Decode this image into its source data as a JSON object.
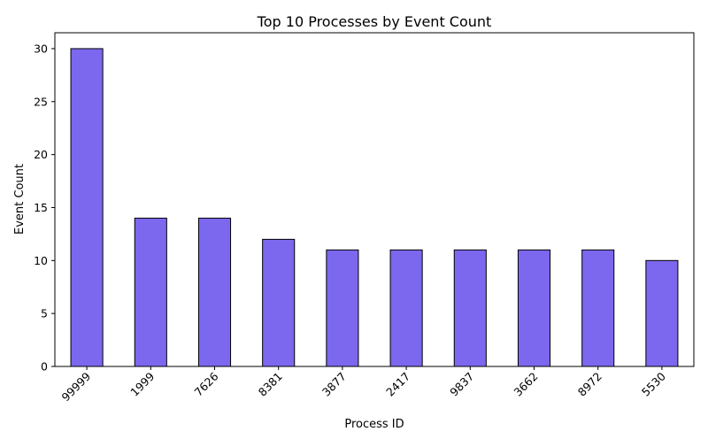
{
  "colors": {
    "bar_fill": "#7b68ee",
    "bar_edge": "#000000",
    "axis": "#000000",
    "background": "#ffffff"
  },
  "chart_data": {
    "type": "bar",
    "title": "Top 10 Processes by Event Count",
    "xlabel": "Process ID",
    "ylabel": "Event Count",
    "categories": [
      "99999",
      "1999",
      "7626",
      "8381",
      "3877",
      "2417",
      "9837",
      "3662",
      "8972",
      "5530"
    ],
    "values": [
      30,
      14,
      14,
      12,
      11,
      11,
      11,
      11,
      11,
      10
    ],
    "ylim": [
      0,
      31.5
    ],
    "yticks": [
      0,
      5,
      10,
      15,
      20,
      25,
      30
    ],
    "x_tick_rotation": 45,
    "grid": false,
    "legend": "none"
  }
}
